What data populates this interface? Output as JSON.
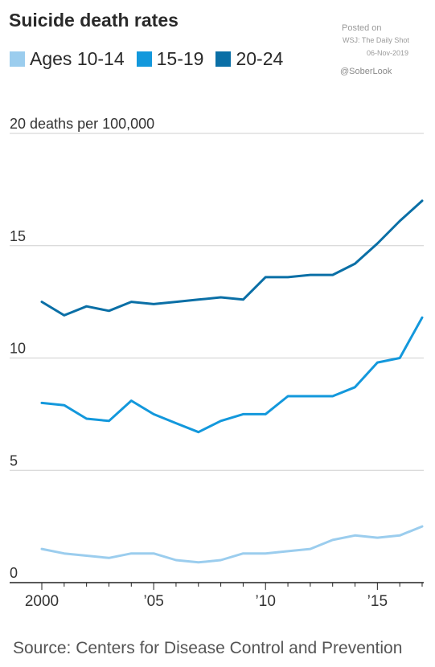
{
  "title": "Suicide death rates",
  "legend": [
    {
      "label": "Ages 10-14",
      "color": "#9bcdee"
    },
    {
      "label": "15-19",
      "color": "#1398dc"
    },
    {
      "label": "20-24",
      "color": "#0a6fa6"
    }
  ],
  "watermark": {
    "posted": "Posted on",
    "source": "WSJ: The Daily Shot",
    "date": "06-Nov-2019",
    "handle": "@SoberLook"
  },
  "source_note": "Source: Centers for Disease Control and Prevention",
  "chart_data": {
    "type": "line",
    "title": "Suicide death rates",
    "ylabel": "",
    "ylim": [
      0,
      20
    ],
    "xlim": [
      2000,
      2017
    ],
    "grid": true,
    "legend_position": "top-left",
    "y_ticks": [
      {
        "value": 0,
        "label": "0"
      },
      {
        "value": 5,
        "label": "5"
      },
      {
        "value": 10,
        "label": "10"
      },
      {
        "value": 15,
        "label": "15"
      },
      {
        "value": 20,
        "label": "20 deaths per 100,000"
      }
    ],
    "x_ticks": [
      {
        "value": 2000,
        "label": "2000"
      },
      {
        "value": 2005,
        "label": "’05"
      },
      {
        "value": 2010,
        "label": "’10"
      },
      {
        "value": 2015,
        "label": "’15"
      }
    ],
    "x": [
      2000,
      2001,
      2002,
      2003,
      2004,
      2005,
      2006,
      2007,
      2008,
      2009,
      2010,
      2011,
      2012,
      2013,
      2014,
      2015,
      2016,
      2017
    ],
    "series": [
      {
        "name": "Ages 10-14",
        "color": "#9bcdee",
        "values": [
          1.5,
          1.3,
          1.2,
          1.1,
          1.3,
          1.3,
          1.0,
          0.9,
          1.0,
          1.3,
          1.3,
          1.4,
          1.5,
          1.9,
          2.1,
          2.0,
          2.1,
          2.5
        ]
      },
      {
        "name": "15-19",
        "color": "#1398dc",
        "values": [
          8.0,
          7.9,
          7.3,
          7.2,
          8.1,
          7.5,
          7.1,
          6.7,
          7.2,
          7.5,
          7.5,
          8.3,
          8.3,
          8.3,
          8.7,
          9.8,
          10.0,
          11.8
        ]
      },
      {
        "name": "20-24",
        "color": "#0a6fa6",
        "values": [
          12.5,
          11.9,
          12.3,
          12.1,
          12.5,
          12.4,
          12.5,
          12.6,
          12.7,
          12.6,
          13.6,
          13.6,
          13.7,
          13.7,
          14.2,
          15.1,
          16.1,
          17.0
        ]
      }
    ]
  }
}
